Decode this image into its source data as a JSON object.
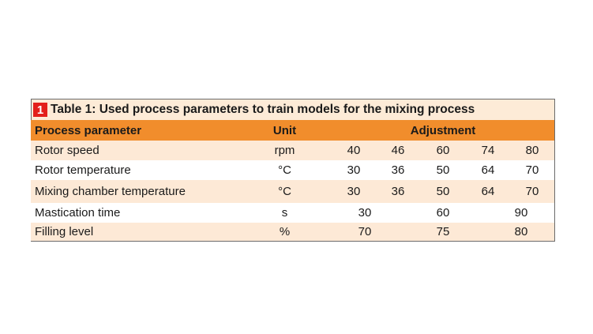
{
  "table": {
    "badge": "1",
    "title": "Table 1: Used process parameters to train models for the mixing process",
    "header": [
      "Process parameter",
      "Unit",
      "Adjustment"
    ],
    "rows": [
      {
        "parameter": "Rotor speed",
        "unit": "rpm",
        "values": [
          40,
          46,
          60,
          74,
          80
        ]
      },
      {
        "parameter": "Rotor temperature",
        "unit": "°C",
        "values": [
          30,
          36,
          50,
          64,
          70
        ]
      },
      {
        "parameter": "Mixing chamber temperature",
        "unit": "°C",
        "values": [
          30,
          36,
          50,
          64,
          70
        ]
      },
      {
        "parameter": "Mastication time",
        "unit": "s",
        "values": [
          30,
          60,
          90
        ]
      },
      {
        "parameter": "Filling level",
        "unit": "%",
        "values": [
          70,
          75,
          80
        ]
      }
    ]
  }
}
